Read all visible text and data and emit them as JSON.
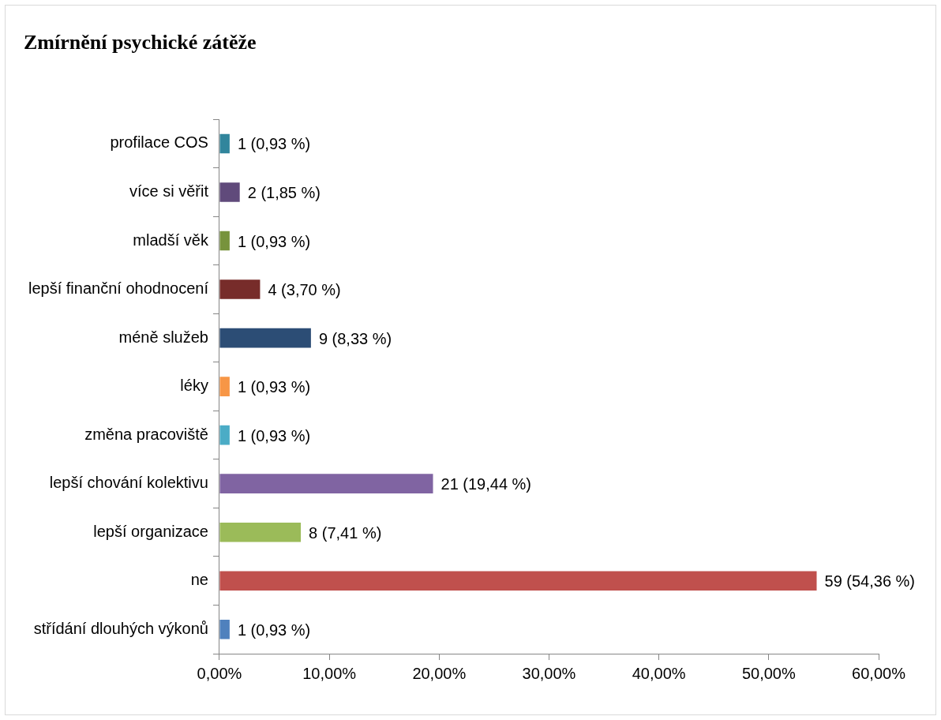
{
  "chart_data": {
    "type": "bar",
    "orientation": "horizontal",
    "title": "Zmírnění psychické zátěže",
    "categories": [
      "profilace COS",
      "více si věřit",
      "mladší věk",
      "lepší finanční ohodnocení",
      "méně služeb",
      "léky",
      "změna pracoviště",
      "lepší chování kolektivu",
      "lepší organizace",
      "ne",
      "střídání dlouhých výkonů"
    ],
    "values": [
      0.93,
      1.85,
      0.93,
      3.7,
      8.33,
      0.93,
      0.93,
      19.44,
      7.41,
      54.36,
      0.93
    ],
    "colors": [
      "#31859c",
      "#604a7b",
      "#77933c",
      "#772c2a",
      "#2c4d75",
      "#f79646",
      "#4bacc6",
      "#8064a2",
      "#9bbb59",
      "#c0504d",
      "#4f81bd"
    ],
    "value_labels": [
      "1 (0,93 %)",
      "2 (1,85 %)",
      "1 (0,93 %)",
      "4 (3,70 %)",
      "9 (8,33 %)",
      "1 (0,93 %)",
      "1 (0,93 %)",
      "21 (19,44 %)",
      "8 (7,41 %)",
      "59 (54,36 %)",
      "1 (0,93 %)"
    ],
    "xlim": [
      0,
      60
    ],
    "xticks": [
      {
        "value": 0,
        "label": "0,00%"
      },
      {
        "value": 10,
        "label": "10,00%"
      },
      {
        "value": 20,
        "label": "20,00%"
      },
      {
        "value": 30,
        "label": "30,00%"
      },
      {
        "value": 40,
        "label": "40,00%"
      },
      {
        "value": 50,
        "label": "50,00%"
      },
      {
        "value": 60,
        "label": "60,00%"
      }
    ],
    "grid": false,
    "legend": false
  }
}
